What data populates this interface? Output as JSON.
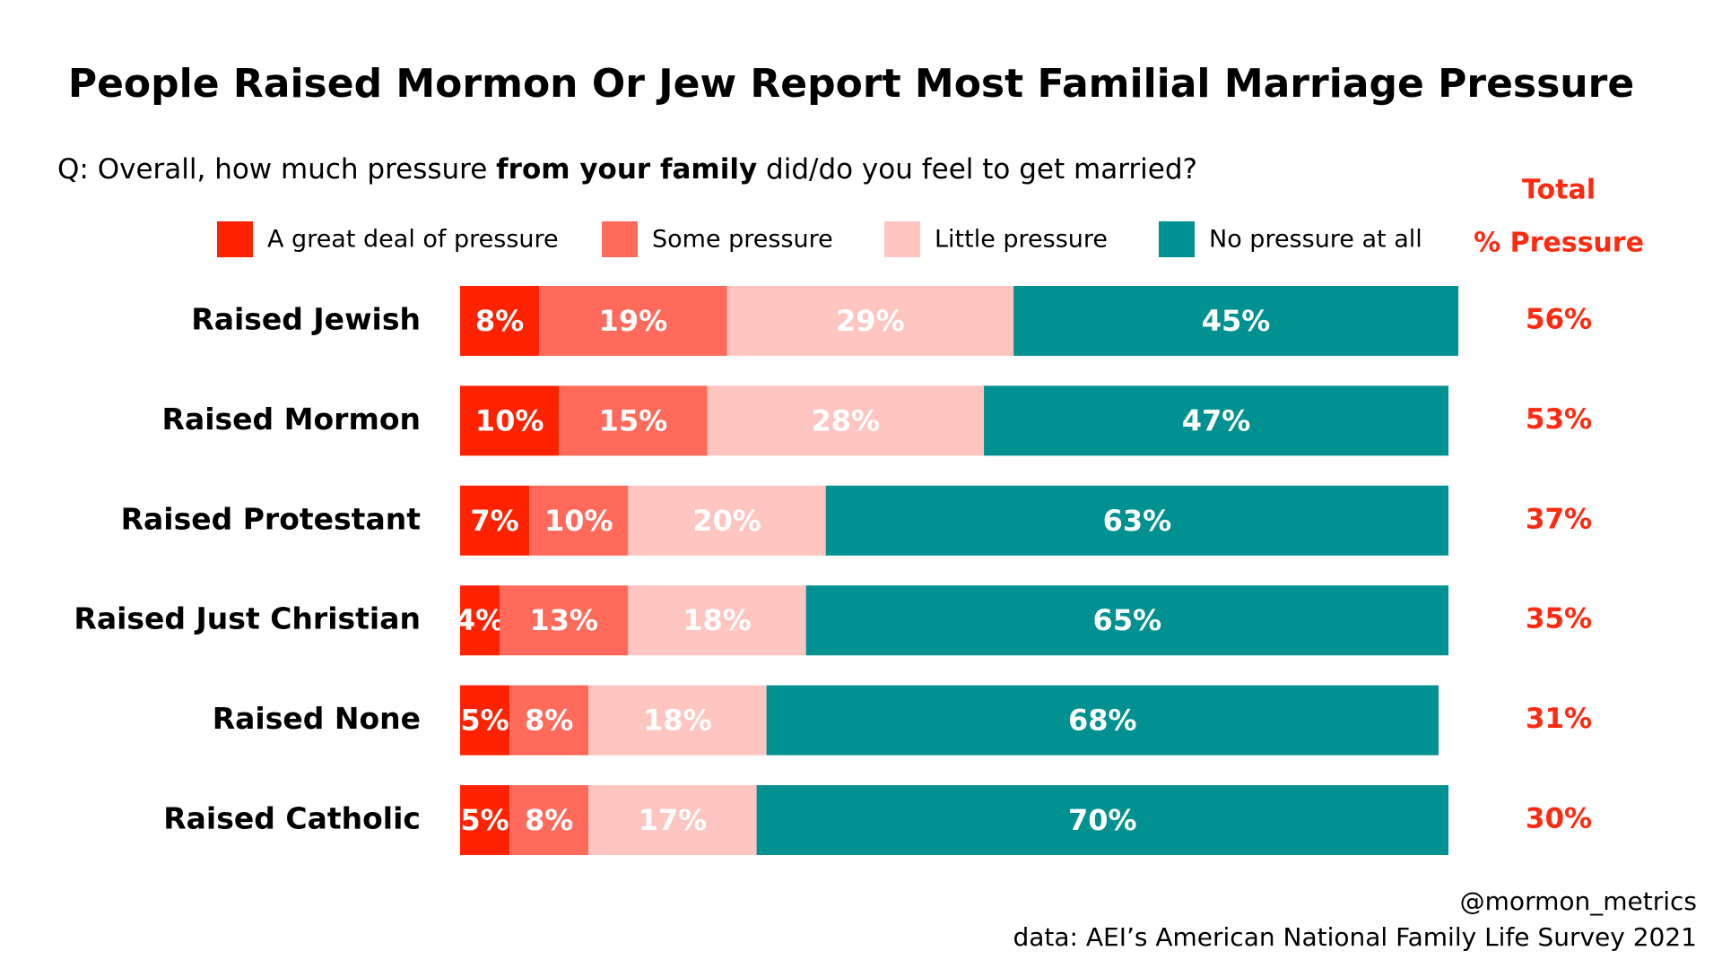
{
  "chart_data": {
    "type": "stacked-bar",
    "title": "People Raised Mormon Or Jew Report Most Familial Marriage Pressure",
    "subtitle": [
      "Q: Overall, how much pressure ",
      "from your family",
      " did/do you feel to get married?"
    ],
    "categories": [
      "Raised Jewish",
      "Raised Mormon",
      "Raised Protestant",
      "Raised Just Christian",
      "Raised None",
      "Raised Catholic"
    ],
    "series": [
      {
        "name": "A great deal of pressure",
        "color": "#ff2200",
        "values": [
          8,
          10,
          7,
          4,
          5,
          5
        ],
        "value_labels": [
          "8%",
          "10%",
          "7%",
          "4%",
          "5%",
          "5%"
        ]
      },
      {
        "name": "Some pressure",
        "color": "#ff6a5b",
        "values": [
          19,
          15,
          10,
          13,
          8,
          8
        ],
        "value_labels": [
          "19%",
          "15%",
          "10%",
          "13%",
          "8%",
          "8%"
        ]
      },
      {
        "name": "Little pressure",
        "color": "#ffc5c0",
        "values": [
          29,
          28,
          20,
          18,
          18,
          17
        ],
        "value_labels": [
          "29%",
          "28%",
          "20%",
          "18%",
          "18%",
          "17%"
        ]
      },
      {
        "name": "No pressure at all",
        "color": "#009190",
        "values": [
          45,
          47,
          63,
          65,
          68,
          70
        ],
        "value_labels": [
          "45%",
          "47%",
          "63%",
          "65%",
          "68%",
          "70%"
        ]
      }
    ],
    "xlim": [
      0,
      100
    ],
    "totals_header": [
      "Total",
      "% Pressure"
    ],
    "totals": {
      "color": "#ff2a10",
      "values": [
        56,
        53,
        37,
        35,
        31,
        30
      ],
      "value_labels": [
        "56%",
        "53%",
        "37%",
        "35%",
        "31%",
        "30%"
      ]
    },
    "credits": [
      "@mormon_metrics",
      "data: AEI’s American National Family Life Survey 2021"
    ]
  }
}
